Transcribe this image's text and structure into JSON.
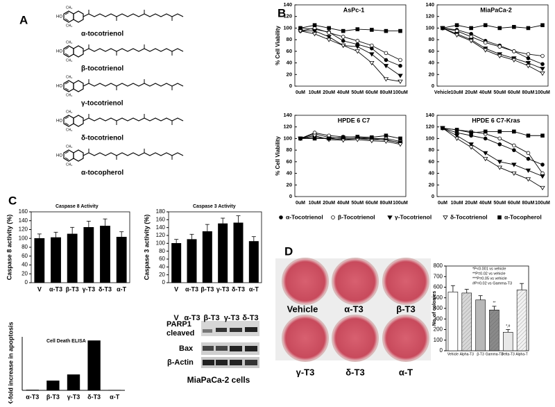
{
  "panel_labels": [
    "A",
    "B",
    "C",
    "D"
  ],
  "structures": [
    "α-tocotrienol",
    "β-tocotrienol",
    "γ-tocotrienol",
    "δ-tocotrienol",
    "α-tocopherol"
  ],
  "legend_b": [
    "α-Tocotrienol",
    "β-Tocotrienol",
    "γ-Tocotrienol",
    "δ-Tocotrienol",
    "α-Tocopherol"
  ],
  "blot": {
    "lanes": [
      "V",
      "α-T3",
      "β-T3",
      "γ-T3",
      "δ-T3"
    ],
    "rows": [
      "PARP1 cleaved",
      "Bax",
      "β-Actin"
    ],
    "caption": "MiaPaCa-2 cells"
  },
  "dish_labels": [
    "Vehicle",
    "α-T3",
    "β-T3",
    "γ-T3",
    "δ-T3",
    "α-T"
  ],
  "chart_data": [
    {
      "type": "line",
      "title": "AsPc-1",
      "ylabel": "% Cell Viability",
      "categories": [
        "0uM",
        "10uM",
        "20uM",
        "40uM",
        "50uM",
        "60uM",
        "80uM",
        "100uM"
      ],
      "ylim": [
        0,
        140
      ],
      "yticks": [
        0,
        20,
        40,
        60,
        80,
        100,
        120,
        140
      ],
      "series": [
        {
          "marker": "circle-filled",
          "color": "#000000",
          "values": [
            100,
            98,
            93,
            78,
            72,
            65,
            45,
            35
          ]
        },
        {
          "marker": "circle-open",
          "color": "#000000",
          "values": [
            95,
            100,
            92,
            85,
            78,
            70,
            57,
            45
          ]
        },
        {
          "marker": "triangle-filled",
          "color": "#000000",
          "values": [
            95,
            95,
            85,
            70,
            68,
            55,
            35,
            18
          ]
        },
        {
          "marker": "triangle-open",
          "color": "#000000",
          "values": [
            95,
            90,
            80,
            70,
            60,
            40,
            12,
            8
          ]
        },
        {
          "marker": "square-filled",
          "color": "#000000",
          "values": [
            100,
            105,
            100,
            95,
            98,
            97,
            95,
            95
          ]
        }
      ]
    },
    {
      "type": "line",
      "title": "MiaPaCa-2",
      "categories": [
        "Vehicle",
        "10uM",
        "20uM",
        "40uM",
        "50uM",
        "60uM",
        "80uM",
        "100uM"
      ],
      "ylim": [
        0,
        140
      ],
      "yticks": [
        0,
        20,
        40,
        60,
        80,
        100,
        120,
        140
      ],
      "series": [
        {
          "marker": "circle-filled",
          "color": "#000000",
          "values": [
            100,
            97,
            90,
            78,
            70,
            60,
            48,
            38
          ]
        },
        {
          "marker": "circle-open",
          "color": "#000000",
          "values": [
            100,
            95,
            85,
            75,
            68,
            60,
            55,
            52
          ]
        },
        {
          "marker": "triangle-filled",
          "color": "#000000",
          "values": [
            100,
            90,
            80,
            65,
            55,
            48,
            40,
            30
          ]
        },
        {
          "marker": "triangle-open",
          "color": "#000000",
          "values": [
            100,
            88,
            78,
            62,
            52,
            45,
            35,
            22
          ]
        },
        {
          "marker": "square-filled",
          "color": "#000000",
          "values": [
            100,
            105,
            100,
            105,
            100,
            102,
            100,
            105
          ]
        }
      ]
    },
    {
      "type": "line",
      "title": "HPDE 6 C7",
      "ylabel": "% Cell Viability",
      "categories": [
        "0uM",
        "10uM",
        "20uM",
        "40uM",
        "50uM",
        "60uM",
        "80uM",
        "100uM"
      ],
      "ylim": [
        0,
        140
      ],
      "yticks": [
        0,
        20,
        40,
        60,
        80,
        100,
        120,
        140
      ],
      "series": [
        {
          "marker": "circle-filled",
          "color": "#000000",
          "values": [
            100,
            108,
            102,
            100,
            100,
            98,
            98,
            92
          ]
        },
        {
          "marker": "circle-open",
          "color": "#000000",
          "values": [
            100,
            110,
            105,
            103,
            102,
            100,
            100,
            95
          ]
        },
        {
          "marker": "triangle-filled",
          "color": "#000000",
          "values": [
            100,
            102,
            100,
            98,
            100,
            100,
            97,
            93
          ]
        },
        {
          "marker": "triangle-open",
          "color": "#000000",
          "values": [
            100,
            105,
            98,
            97,
            98,
            96,
            95,
            90
          ]
        },
        {
          "marker": "square-filled",
          "color": "#000000",
          "values": [
            100,
            100,
            100,
            102,
            103,
            102,
            105,
            100
          ]
        }
      ]
    },
    {
      "type": "line",
      "title": "HPDE 6 C7-Kras",
      "categories": [
        "0uM",
        "10uM",
        "20uM",
        "40uM",
        "50uM",
        "60uM",
        "80uM",
        "100uM"
      ],
      "ylim": [
        0,
        140
      ],
      "yticks": [
        0,
        20,
        40,
        60,
        80,
        100,
        120,
        140
      ],
      "series": [
        {
          "marker": "circle-filled",
          "color": "#000000",
          "values": [
            118,
            110,
            105,
            100,
            90,
            80,
            65,
            55
          ]
        },
        {
          "marker": "circle-open",
          "color": "#000000",
          "values": [
            118,
            115,
            112,
            108,
            100,
            88,
            75,
            40
          ]
        },
        {
          "marker": "triangle-filled",
          "color": "#000000",
          "values": [
            118,
            105,
            90,
            75,
            60,
            55,
            45,
            35
          ]
        },
        {
          "marker": "triangle-open",
          "color": "#000000",
          "values": [
            118,
            100,
            85,
            65,
            50,
            40,
            30,
            15
          ]
        },
        {
          "marker": "square-filled",
          "color": "#000000",
          "values": [
            118,
            115,
            110,
            112,
            112,
            112,
            105,
            105
          ]
        }
      ]
    },
    {
      "type": "bar",
      "title": "Caspase 8 Activity",
      "ylabel": "Caspase 8 activity (%)",
      "categories": [
        "V",
        "α-T3",
        "β-T3",
        "γ-T3",
        "δ-T3",
        "α-T"
      ],
      "values": [
        100,
        102,
        110,
        125,
        128,
        103
      ],
      "errors": [
        10,
        12,
        15,
        14,
        16,
        12
      ],
      "color": "#000000",
      "ylim": [
        0,
        160
      ],
      "yticks": [
        0,
        20,
        40,
        60,
        80,
        100,
        120,
        140,
        160
      ]
    },
    {
      "type": "bar",
      "title": "Caspase 3 Activity",
      "ylabel": "Caspase 3 activity (%)",
      "categories": [
        "V",
        "α-T3",
        "β-T3",
        "γ-T3",
        "δ-T3",
        "α-T"
      ],
      "values": [
        100,
        110,
        130,
        150,
        152,
        105
      ],
      "errors": [
        10,
        13,
        18,
        14,
        18,
        12
      ],
      "color": "#000000",
      "ylim": [
        0,
        180
      ],
      "yticks": [
        0,
        20,
        40,
        60,
        80,
        100,
        120,
        140,
        160,
        180
      ]
    },
    {
      "type": "bar",
      "title": "Cell Death ELISA",
      "ylabel": "X-fold increase in apoptosis",
      "categories": [
        "α-T3",
        "β-T3",
        "γ-T3",
        "δ-T3",
        "α-T"
      ],
      "values": [
        0.1,
        2.5,
        4.1,
        13,
        0.05
      ],
      "color": "#000000",
      "ylim": [
        0,
        14
      ]
    },
    {
      "type": "bar",
      "ylabel": "No. of colonies",
      "categories": [
        "Vehicle",
        "Alpha-T3",
        "β-T3",
        "Gamma-T3",
        "Delta-T3",
        "Alpha-T"
      ],
      "values": [
        555,
        545,
        480,
        385,
        175,
        575
      ],
      "errors": [
        60,
        35,
        40,
        35,
        25,
        60
      ],
      "colors": [
        "#ffffff",
        "#d8d8d8",
        "#b8b8b8",
        "#8a8a8a",
        "#e8e8e8",
        "#f2f2f2"
      ],
      "bar_annotations": [
        null,
        null,
        null,
        "**",
        "*,#",
        null
      ],
      "notes": [
        "*P<0.001 vs vehicle",
        "**P=0.02 vs vehicle",
        "***P=0.05 vs vehicle",
        "#P=0.02 vs Gamma-T3"
      ],
      "ylim": [
        0,
        800
      ],
      "yticks": [
        0,
        100,
        200,
        300,
        400,
        500,
        600,
        700,
        800
      ]
    }
  ]
}
